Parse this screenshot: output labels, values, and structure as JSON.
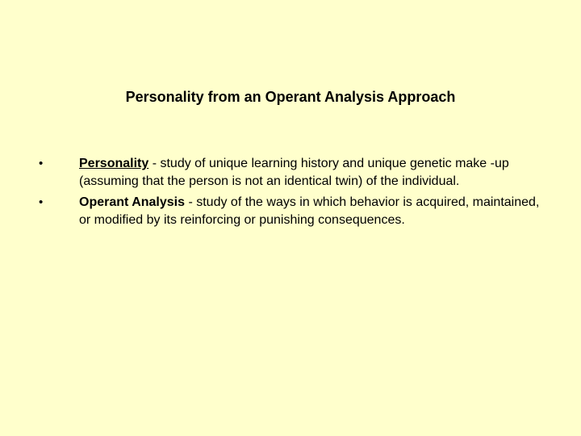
{
  "slide": {
    "background_color": "#ffffcc",
    "text_color": "#000000",
    "title_fontsize": 18,
    "body_fontsize": 16,
    "line_height": 22,
    "font_family": "Arial, Helvetica, sans-serif",
    "title": "Personality from an Operant Analysis Approach",
    "bullet_marker": "•",
    "bullets": [
      {
        "term": "Personality",
        "term_style": "bold-underline",
        "rest": " - study of unique learning history and unique genetic make -up (assuming that the person is not an identical twin) of the individual."
      },
      {
        "term": "Operant Analysis",
        "term_style": "bold",
        "rest": " - study of the ways in which behavior is acquired, maintained, or modified by its reinforcing or punishing consequences."
      }
    ]
  }
}
